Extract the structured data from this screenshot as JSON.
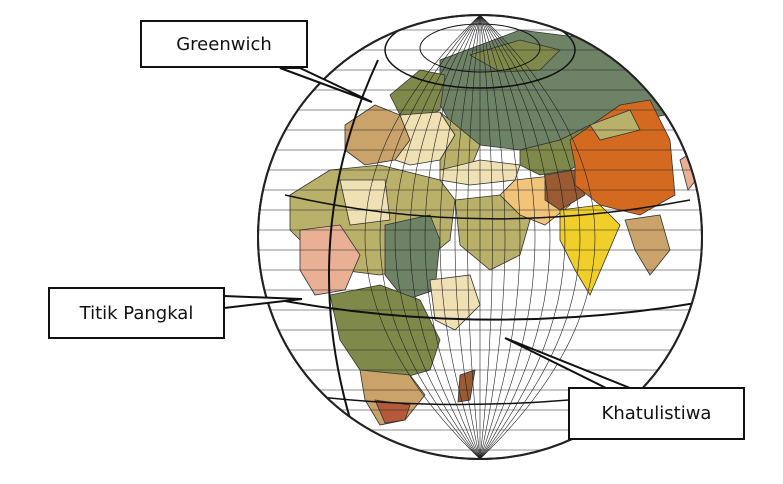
{
  "labels": {
    "greenwich": "Greenwich",
    "titik_pangkal": "Titik Pangkal",
    "khatulistiwa": "Khatulistiwa"
  },
  "colors": {
    "ocean": "#ffffff",
    "grid": "#222222",
    "land_olive": "#7f8a4a",
    "land_sage": "#6e8266",
    "land_tan": "#c9a36a",
    "land_khaki": "#b9b06a",
    "land_orange": "#d46a1f",
    "land_salmon": "#e9b095",
    "land_peach": "#f2c47a",
    "land_yellow": "#f0cf2a",
    "land_brown": "#9a5a32",
    "land_cream": "#efe1b4",
    "land_rust": "#b45a3a"
  },
  "icons": {
    "globe": "globe-icon"
  }
}
